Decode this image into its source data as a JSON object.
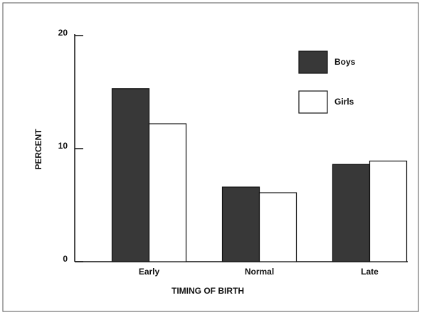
{
  "chart_data": {
    "type": "bar",
    "xlabel": "TIMING OF BIRTH",
    "ylabel": "PERCENT",
    "categories": [
      "Early",
      "Normal",
      "Late"
    ],
    "series": [
      {
        "name": "Boys",
        "color": "#383838",
        "values": [
          15.3,
          6.6,
          8.6
        ]
      },
      {
        "name": "Girls",
        "color": "#ffffff",
        "values": [
          12.2,
          6.1,
          8.9
        ]
      }
    ],
    "ylim": [
      0,
      20
    ],
    "yticks": [
      0,
      10,
      20
    ],
    "legend": "upper right"
  }
}
